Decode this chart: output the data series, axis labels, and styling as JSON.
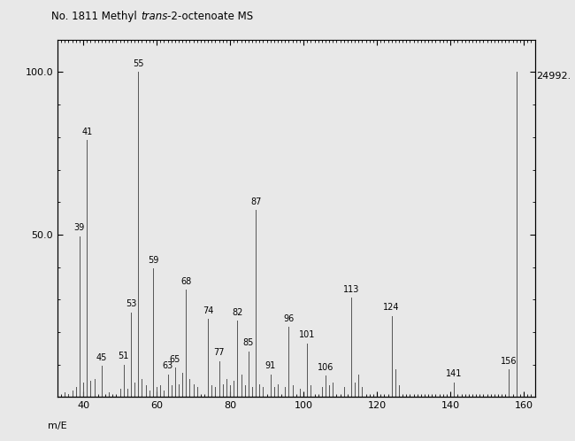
{
  "title_prefix": "No. 1811 Methyl ",
  "title_italic": "trans",
  "title_suffix": "-2-octenoate MS",
  "xlabel": "m/E",
  "xlim": [
    33,
    163
  ],
  "ylim": [
    0,
    110
  ],
  "yticks": [
    50.0,
    100.0
  ],
  "xticks": [
    40,
    60,
    80,
    100,
    120,
    140,
    160
  ],
  "right_label": "24992.",
  "background_color": "#e8e8e8",
  "peaks": [
    {
      "mz": 35,
      "intensity": 1.5,
      "label": ""
    },
    {
      "mz": 36,
      "intensity": 1.0,
      "label": ""
    },
    {
      "mz": 37,
      "intensity": 2.0,
      "label": ""
    },
    {
      "mz": 38,
      "intensity": 3.0,
      "label": ""
    },
    {
      "mz": 39,
      "intensity": 49.5,
      "label": "39"
    },
    {
      "mz": 40,
      "intensity": 4.5,
      "label": ""
    },
    {
      "mz": 41,
      "intensity": 79.0,
      "label": "41"
    },
    {
      "mz": 42,
      "intensity": 5.0,
      "label": ""
    },
    {
      "mz": 43,
      "intensity": 5.5,
      "label": ""
    },
    {
      "mz": 45,
      "intensity": 9.5,
      "label": "45"
    },
    {
      "mz": 47,
      "intensity": 1.5,
      "label": ""
    },
    {
      "mz": 50,
      "intensity": 2.5,
      "label": ""
    },
    {
      "mz": 51,
      "intensity": 10.0,
      "label": "51"
    },
    {
      "mz": 52,
      "intensity": 2.5,
      "label": ""
    },
    {
      "mz": 53,
      "intensity": 26.0,
      "label": "53"
    },
    {
      "mz": 54,
      "intensity": 4.5,
      "label": ""
    },
    {
      "mz": 55,
      "intensity": 100.0,
      "label": "55"
    },
    {
      "mz": 56,
      "intensity": 5.5,
      "label": ""
    },
    {
      "mz": 57,
      "intensity": 3.5,
      "label": ""
    },
    {
      "mz": 58,
      "intensity": 2.0,
      "label": ""
    },
    {
      "mz": 59,
      "intensity": 39.5,
      "label": "59"
    },
    {
      "mz": 60,
      "intensity": 3.0,
      "label": ""
    },
    {
      "mz": 61,
      "intensity": 3.5,
      "label": ""
    },
    {
      "mz": 62,
      "intensity": 2.0,
      "label": ""
    },
    {
      "mz": 63,
      "intensity": 7.0,
      "label": "63"
    },
    {
      "mz": 64,
      "intensity": 3.5,
      "label": ""
    },
    {
      "mz": 65,
      "intensity": 9.0,
      "label": "65"
    },
    {
      "mz": 66,
      "intensity": 4.0,
      "label": ""
    },
    {
      "mz": 67,
      "intensity": 7.5,
      "label": ""
    },
    {
      "mz": 68,
      "intensity": 33.0,
      "label": "68"
    },
    {
      "mz": 69,
      "intensity": 5.5,
      "label": ""
    },
    {
      "mz": 70,
      "intensity": 4.0,
      "label": ""
    },
    {
      "mz": 71,
      "intensity": 3.0,
      "label": ""
    },
    {
      "mz": 74,
      "intensity": 24.0,
      "label": "74"
    },
    {
      "mz": 75,
      "intensity": 3.5,
      "label": ""
    },
    {
      "mz": 76,
      "intensity": 3.0,
      "label": ""
    },
    {
      "mz": 77,
      "intensity": 11.0,
      "label": "77"
    },
    {
      "mz": 78,
      "intensity": 4.0,
      "label": ""
    },
    {
      "mz": 79,
      "intensity": 5.5,
      "label": ""
    },
    {
      "mz": 80,
      "intensity": 3.5,
      "label": ""
    },
    {
      "mz": 81,
      "intensity": 5.0,
      "label": ""
    },
    {
      "mz": 82,
      "intensity": 23.5,
      "label": "82"
    },
    {
      "mz": 83,
      "intensity": 7.0,
      "label": ""
    },
    {
      "mz": 84,
      "intensity": 3.5,
      "label": ""
    },
    {
      "mz": 85,
      "intensity": 14.0,
      "label": "85"
    },
    {
      "mz": 86,
      "intensity": 3.0,
      "label": ""
    },
    {
      "mz": 87,
      "intensity": 57.5,
      "label": "87"
    },
    {
      "mz": 88,
      "intensity": 4.0,
      "label": ""
    },
    {
      "mz": 89,
      "intensity": 3.0,
      "label": ""
    },
    {
      "mz": 91,
      "intensity": 7.0,
      "label": "91"
    },
    {
      "mz": 92,
      "intensity": 3.0,
      "label": ""
    },
    {
      "mz": 93,
      "intensity": 4.0,
      "label": ""
    },
    {
      "mz": 95,
      "intensity": 3.0,
      "label": ""
    },
    {
      "mz": 96,
      "intensity": 21.5,
      "label": "96"
    },
    {
      "mz": 97,
      "intensity": 3.5,
      "label": ""
    },
    {
      "mz": 99,
      "intensity": 2.5,
      "label": ""
    },
    {
      "mz": 101,
      "intensity": 16.5,
      "label": "101"
    },
    {
      "mz": 102,
      "intensity": 3.5,
      "label": ""
    },
    {
      "mz": 105,
      "intensity": 3.0,
      "label": ""
    },
    {
      "mz": 106,
      "intensity": 6.5,
      "label": "106"
    },
    {
      "mz": 107,
      "intensity": 3.5,
      "label": ""
    },
    {
      "mz": 108,
      "intensity": 4.5,
      "label": ""
    },
    {
      "mz": 111,
      "intensity": 3.0,
      "label": ""
    },
    {
      "mz": 113,
      "intensity": 30.5,
      "label": "113"
    },
    {
      "mz": 114,
      "intensity": 4.5,
      "label": ""
    },
    {
      "mz": 115,
      "intensity": 7.0,
      "label": ""
    },
    {
      "mz": 116,
      "intensity": 3.0,
      "label": ""
    },
    {
      "mz": 124,
      "intensity": 25.0,
      "label": "124"
    },
    {
      "mz": 125,
      "intensity": 8.5,
      "label": ""
    },
    {
      "mz": 126,
      "intensity": 3.5,
      "label": ""
    },
    {
      "mz": 141,
      "intensity": 4.5,
      "label": "141"
    },
    {
      "mz": 156,
      "intensity": 8.5,
      "label": "156"
    },
    {
      "mz": 158,
      "intensity": 100.0,
      "label": ""
    }
  ],
  "line_color": "#555555",
  "label_fontsize": 7,
  "axis_fontsize": 8,
  "title_fontsize": 8.5
}
